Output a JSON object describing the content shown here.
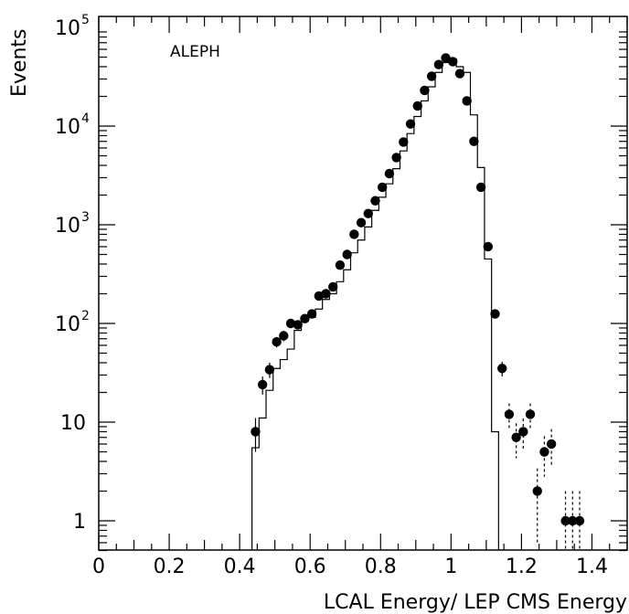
{
  "chart_data": {
    "type": "scatter",
    "title": "",
    "annotation": "ALEPH",
    "xlabel": "LCAL Energy/ LEP CMS Energy",
    "ylabel": "Events",
    "xlim": [
      0,
      1.5
    ],
    "ylim": [
      0.5,
      100000
    ],
    "yscale": "log",
    "x_ticks": [
      0,
      0.2,
      0.4,
      0.6,
      0.8,
      1,
      1.2,
      1.4
    ],
    "x_tick_labels": [
      "0",
      "0.2",
      "0.4",
      "0.6",
      "0.8",
      "1",
      "1.2",
      "1.4"
    ],
    "y_ticks": [
      {
        "value": 1,
        "label": "1",
        "exp": ""
      },
      {
        "value": 10,
        "label": "10",
        "exp": ""
      },
      {
        "value": 100,
        "label": "10",
        "exp": "2"
      },
      {
        "value": 1000,
        "label": "10",
        "exp": "3"
      },
      {
        "value": 10000,
        "label": "10",
        "exp": "4"
      },
      {
        "value": 100000,
        "label": "10",
        "exp": "5"
      }
    ],
    "grid": false,
    "series": [
      {
        "kind": "points",
        "x": [
          0.445,
          0.465,
          0.485,
          0.505,
          0.525,
          0.545,
          0.565,
          0.585,
          0.605,
          0.625,
          0.645,
          0.665,
          0.685,
          0.705,
          0.725,
          0.745,
          0.765,
          0.785,
          0.805,
          0.825,
          0.845,
          0.865,
          0.885,
          0.905,
          0.925,
          0.945,
          0.965,
          0.985,
          1.005,
          1.025,
          1.045,
          1.065,
          1.085,
          1.105,
          1.125,
          1.145,
          1.165,
          1.185,
          1.205,
          1.225,
          1.245,
          1.265,
          1.285,
          1.325,
          1.345,
          1.365
        ],
        "y": [
          8,
          24,
          34,
          65,
          75,
          100,
          97,
          112,
          125,
          190,
          200,
          235,
          390,
          500,
          800,
          1050,
          1300,
          1750,
          2400,
          3300,
          4800,
          6900,
          10500,
          16000,
          23000,
          32000,
          42000,
          49000,
          45000,
          34000,
          18000,
          7000,
          2400,
          600,
          125,
          35,
          12,
          7,
          8,
          12,
          2,
          5,
          6,
          1,
          1,
          1
        ],
        "yerr": [
          3,
          5,
          6,
          8,
          9,
          10,
          10,
          11,
          11,
          14,
          14,
          15,
          20,
          22,
          28,
          32,
          36,
          42,
          49,
          57,
          69,
          83,
          102,
          126,
          152,
          179,
          205,
          221,
          212,
          184,
          134,
          84,
          49,
          24,
          11,
          6,
          3.5,
          2.7,
          2.9,
          3.5,
          1.4,
          2.2,
          2.5,
          1,
          1,
          1
        ]
      },
      {
        "kind": "histogram",
        "edges": [
          0.435,
          0.455,
          0.475,
          0.495,
          0.515,
          0.535,
          0.555,
          0.575,
          0.595,
          0.615,
          0.635,
          0.655,
          0.675,
          0.695,
          0.715,
          0.735,
          0.755,
          0.775,
          0.795,
          0.815,
          0.835,
          0.855,
          0.875,
          0.895,
          0.915,
          0.935,
          0.955,
          0.975,
          0.995,
          1.015,
          1.035,
          1.055,
          1.075,
          1.095,
          1.115,
          1.135
        ],
        "values": [
          5.5,
          11,
          21,
          35,
          43,
          55,
          85,
          105,
          115,
          140,
          175,
          200,
          265,
          350,
          520,
          700,
          950,
          1400,
          1900,
          2600,
          3700,
          5600,
          8400,
          12500,
          18000,
          25000,
          35000,
          44000,
          48000,
          40000,
          35000,
          13000,
          3800,
          450,
          8
        ]
      }
    ]
  }
}
